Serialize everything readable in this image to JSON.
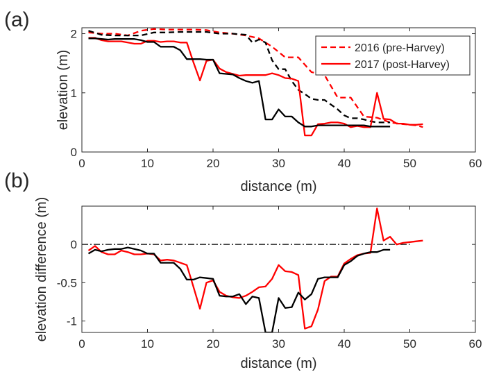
{
  "chart_data": [
    {
      "panel_label": "(a)",
      "type": "line",
      "xlabel": "distance (m)",
      "ylabel": "elevation (m)",
      "xlim": [
        0,
        60
      ],
      "ylim": [
        0,
        2.1
      ],
      "xticks": [
        0,
        10,
        20,
        30,
        40,
        50,
        60
      ],
      "yticks": [
        0,
        1,
        2
      ],
      "xtick_labels": [
        "0",
        "10",
        "20",
        "30",
        "40",
        "50",
        "60"
      ],
      "ytick_labels": [
        "0",
        "1",
        "2"
      ],
      "grid": false,
      "legend": {
        "placement": "top-right",
        "entries": [
          {
            "label": "2016 (pre-Harvey)",
            "style": "dashed"
          },
          {
            "label": "2017 (post-Harvey)",
            "style": "solid"
          }
        ]
      },
      "series": [
        {
          "line": "dashed",
          "color": "#ff0000",
          "x": [
            1,
            3,
            5,
            7,
            9,
            11,
            13,
            15,
            17,
            19,
            21,
            23,
            25,
            27,
            29,
            31,
            33,
            35,
            37,
            39,
            41,
            43,
            45,
            47,
            49,
            51,
            52
          ],
          "y": [
            2.02,
            2.0,
            2.0,
            1.97,
            2.05,
            2.08,
            2.07,
            2.07,
            2.07,
            2.06,
            2.02,
            2.0,
            1.97,
            1.92,
            1.78,
            1.6,
            1.6,
            1.35,
            1.3,
            0.92,
            0.92,
            0.6,
            0.58,
            0.5,
            0.47,
            0.45,
            0.42
          ]
        },
        {
          "line": "dashed",
          "color": "#000000",
          "x": [
            1,
            3,
            5,
            7,
            9,
            11,
            13,
            15,
            17,
            19,
            21,
            23,
            25,
            26,
            27,
            28,
            29,
            30,
            31,
            32,
            33,
            34,
            35,
            36,
            37,
            38,
            39,
            40,
            41,
            42,
            43,
            44,
            45,
            46,
            47
          ],
          "y": [
            2.05,
            1.98,
            1.97,
            1.97,
            1.97,
            2.02,
            2.02,
            2.03,
            2.03,
            2.03,
            2.0,
            2.0,
            1.98,
            1.85,
            1.9,
            1.85,
            1.55,
            1.4,
            1.4,
            1.2,
            1.05,
            0.98,
            0.9,
            0.88,
            0.88,
            0.8,
            0.72,
            0.62,
            0.57,
            0.57,
            0.55,
            0.52,
            0.5,
            0.5,
            0.5
          ]
        },
        {
          "line": "solid",
          "color": "#ff0000",
          "x": [
            1,
            2,
            3,
            4,
            5,
            6,
            7,
            8,
            9,
            10,
            11,
            12,
            13,
            14,
            15,
            16,
            17,
            18,
            19,
            20,
            21,
            22,
            23,
            24,
            25,
            26,
            27,
            28,
            29,
            30,
            31,
            32,
            33,
            34,
            35,
            36,
            37,
            38,
            39,
            40,
            41,
            42,
            43,
            44,
            45,
            46,
            47,
            48,
            49,
            50,
            51,
            52
          ],
          "y": [
            1.93,
            1.93,
            1.89,
            1.87,
            1.87,
            1.87,
            1.85,
            1.83,
            1.83,
            1.88,
            1.88,
            1.86,
            1.87,
            1.87,
            1.85,
            1.85,
            1.52,
            1.21,
            1.54,
            1.56,
            1.41,
            1.35,
            1.32,
            1.29,
            1.3,
            1.3,
            1.3,
            1.3,
            1.33,
            1.3,
            1.25,
            1.24,
            1.2,
            0.28,
            0.28,
            0.47,
            0.48,
            0.5,
            0.5,
            0.48,
            0.42,
            0.44,
            0.42,
            0.42,
            1.0,
            0.56,
            0.55,
            0.48,
            0.48,
            0.46,
            0.46,
            0.47
          ]
        },
        {
          "line": "solid",
          "color": "#000000",
          "x": [
            1,
            2,
            3,
            4,
            5,
            6,
            7,
            8,
            9,
            10,
            11,
            12,
            13,
            14,
            15,
            16,
            17,
            18,
            19,
            20,
            21,
            22,
            23,
            24,
            25,
            26,
            27,
            28,
            29,
            30,
            31,
            32,
            33,
            34,
            35,
            36,
            37,
            38,
            39,
            40,
            41,
            42,
            43,
            44,
            45,
            46,
            47
          ],
          "y": [
            1.92,
            1.92,
            1.91,
            1.9,
            1.91,
            1.91,
            1.91,
            1.91,
            1.89,
            1.86,
            1.86,
            1.78,
            1.78,
            1.78,
            1.72,
            1.57,
            1.57,
            1.57,
            1.56,
            1.56,
            1.33,
            1.32,
            1.31,
            1.25,
            1.2,
            1.17,
            1.2,
            0.55,
            0.55,
            0.72,
            0.6,
            0.6,
            0.5,
            0.43,
            0.43,
            0.45,
            0.45,
            0.45,
            0.45,
            0.45,
            0.45,
            0.45,
            0.45,
            0.43,
            0.43,
            0.43,
            0.43
          ]
        }
      ]
    },
    {
      "panel_label": "(b)",
      "type": "line",
      "xlabel": "distance (m)",
      "ylabel": "elevation difference (m)",
      "xlim": [
        0,
        60
      ],
      "ylim": [
        -1.15,
        0.5
      ],
      "xticks": [
        0,
        10,
        20,
        30,
        40,
        50,
        60
      ],
      "yticks": [
        -1,
        -0.5,
        0
      ],
      "xtick_labels": [
        "0",
        "10",
        "20",
        "30",
        "40",
        "50",
        "60"
      ],
      "ytick_labels": [
        "-1",
        "-0.5",
        "0"
      ],
      "grid": false,
      "reference_line": {
        "y": 0,
        "style": "dash-dot",
        "color": "#000000"
      },
      "series": [
        {
          "line": "solid",
          "color": "#ff0000",
          "x": [
            1,
            2,
            3,
            4,
            5,
            6,
            7,
            8,
            9,
            10,
            11,
            12,
            13,
            14,
            15,
            16,
            17,
            18,
            19,
            20,
            21,
            22,
            23,
            24,
            25,
            26,
            27,
            28,
            29,
            30,
            31,
            32,
            33,
            34,
            35,
            36,
            37,
            38,
            39,
            40,
            41,
            42,
            43,
            44,
            45,
            46,
            47,
            48,
            49,
            50,
            51,
            52
          ],
          "y": [
            -0.08,
            -0.02,
            -0.1,
            -0.13,
            -0.13,
            -0.08,
            -0.1,
            -0.13,
            -0.13,
            -0.12,
            -0.13,
            -0.21,
            -0.2,
            -0.21,
            -0.24,
            -0.27,
            -0.55,
            -0.84,
            -0.5,
            -0.47,
            -0.62,
            -0.67,
            -0.69,
            -0.7,
            -0.67,
            -0.62,
            -0.56,
            -0.55,
            -0.45,
            -0.27,
            -0.35,
            -0.36,
            -0.4,
            -1.1,
            -1.07,
            -0.85,
            -0.48,
            -0.42,
            -0.42,
            -0.25,
            -0.19,
            -0.14,
            -0.12,
            -0.11,
            0.47,
            0.05,
            0.1,
            0.0,
            0.02,
            0.03,
            0.04,
            0.05
          ]
        },
        {
          "line": "solid",
          "color": "#000000",
          "x": [
            1,
            2,
            3,
            4,
            5,
            6,
            7,
            8,
            9,
            10,
            11,
            12,
            13,
            14,
            15,
            16,
            17,
            18,
            19,
            20,
            21,
            22,
            23,
            24,
            25,
            26,
            27,
            28,
            29,
            30,
            31,
            32,
            33,
            34,
            35,
            36,
            37,
            38,
            39,
            40,
            41,
            42,
            43,
            44,
            45,
            46,
            47
          ],
          "y": [
            -0.12,
            -0.07,
            -0.09,
            -0.07,
            -0.06,
            -0.06,
            -0.04,
            -0.06,
            -0.08,
            -0.12,
            -0.12,
            -0.24,
            -0.24,
            -0.24,
            -0.32,
            -0.46,
            -0.46,
            -0.43,
            -0.44,
            -0.45,
            -0.67,
            -0.68,
            -0.68,
            -0.65,
            -0.78,
            -0.68,
            -0.7,
            -1.15,
            -1.15,
            -0.7,
            -0.83,
            -0.82,
            -0.63,
            -0.72,
            -0.65,
            -0.45,
            -0.43,
            -0.43,
            -0.43,
            -0.27,
            -0.22,
            -0.15,
            -0.12,
            -0.1,
            -0.1,
            -0.07,
            -0.07
          ]
        }
      ]
    }
  ]
}
